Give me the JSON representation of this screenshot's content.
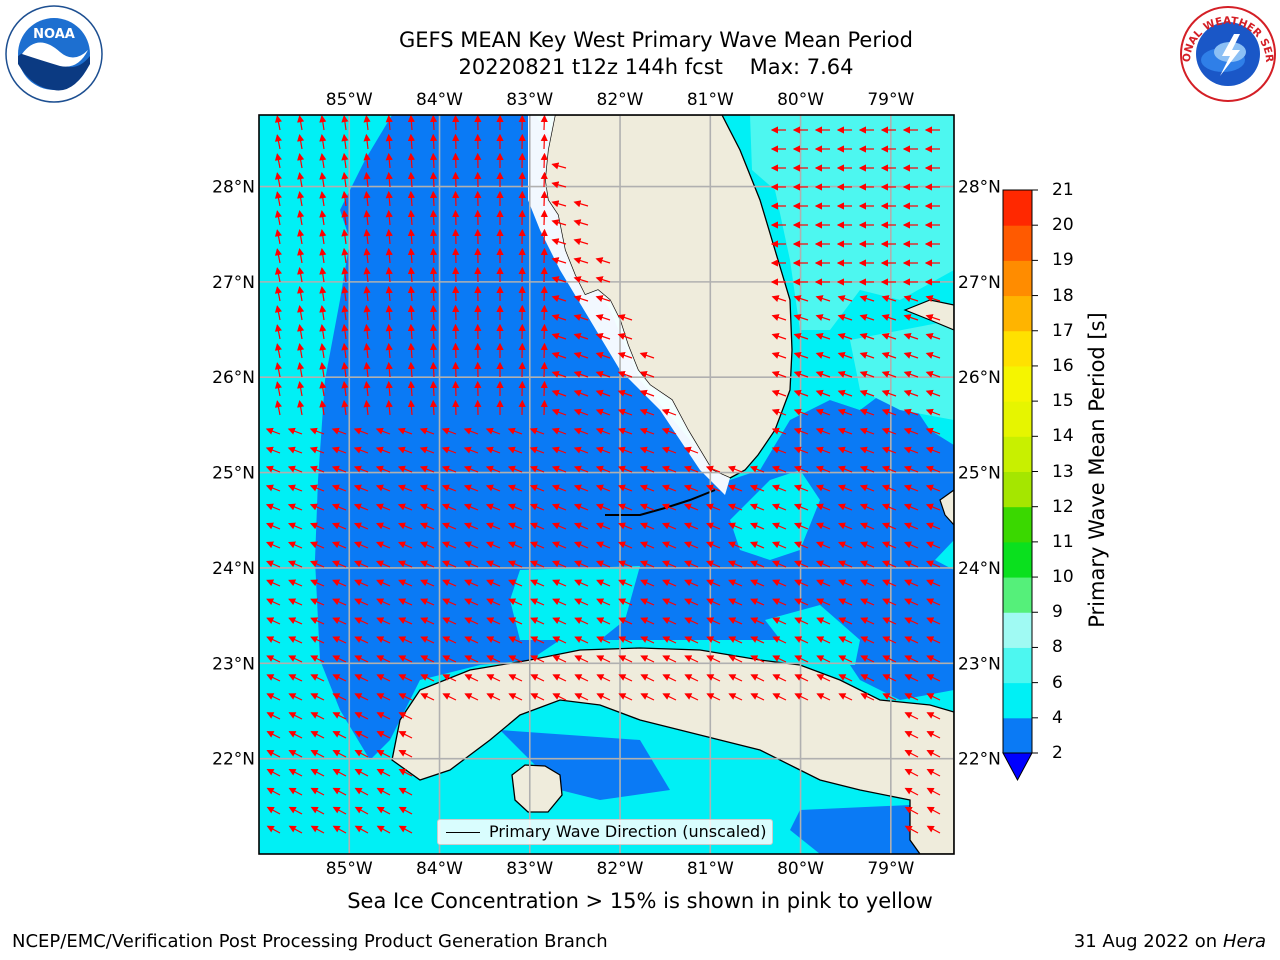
{
  "title": {
    "line1": "GEFS MEAN Key West Primary Wave Mean Period",
    "line2": "20220821 t12z 144h fcst    Max: 7.64"
  },
  "logos": {
    "left": "noaa-logo",
    "left_text": "NOAA",
    "right": "nws-logo",
    "right_text": "NATIONAL WEATHER SERVICE"
  },
  "map": {
    "lon_labels": [
      "85°W",
      "84°W",
      "83°W",
      "82°W",
      "81°W",
      "80°W",
      "79°W"
    ],
    "lat_labels": [
      "28°N",
      "27°N",
      "26°N",
      "25°N",
      "24°N",
      "23°N",
      "22°N"
    ],
    "lon_range": [
      -86.0,
      -78.3
    ],
    "lat_range": [
      21.0,
      28.75
    ],
    "grid": true,
    "land_color": "#efecdc",
    "coast_color": "#000000",
    "vector_color": "#ff0000",
    "gridline_color": "#b0b0b0"
  },
  "legend": {
    "label": "Primary Wave Direction (unscaled)",
    "placement": "bottom-center"
  },
  "colorbar": {
    "label": "Primary Wave Mean Period [s]",
    "levels": [
      2,
      4,
      6,
      8,
      9,
      10,
      11,
      12,
      13,
      14,
      15,
      16,
      17,
      18,
      19,
      20,
      21
    ],
    "tick_labels": [
      "2",
      "4",
      "6",
      "8",
      "9",
      "10",
      "11",
      "12",
      "13",
      "14",
      "15",
      "16",
      "17",
      "18",
      "19",
      "20",
      "21"
    ],
    "colors": [
      "#0a7af5",
      "#00f0f5",
      "#4df7f0",
      "#a0faf3",
      "#55f07a",
      "#0ae01e",
      "#3ad800",
      "#a5e600",
      "#c8f000",
      "#e6f500",
      "#f5f500",
      "#ffe100",
      "#ffb400",
      "#ff8c00",
      "#ff5a00",
      "#ff2800",
      "#ff0000"
    ],
    "extend_color": "#0000ff"
  },
  "note": "Sea Ice Concentration > 15% is shown in pink to yellow",
  "footer": {
    "left": "NCEP/EMC/Verification Post Processing Product Generation Branch",
    "date": "31 Aug 2022 on",
    "host": "Hera"
  }
}
